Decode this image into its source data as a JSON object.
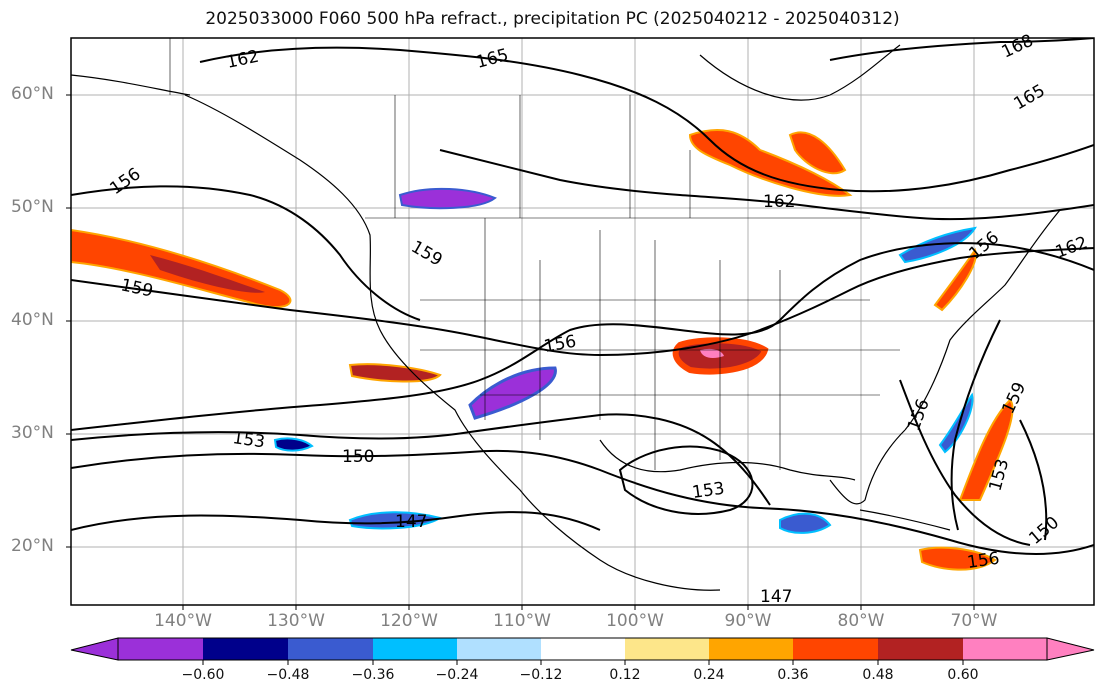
{
  "title": "2025033000 F060 500 hPa refract., precipitation PC (2025040212 - 2025040312)",
  "map": {
    "lat_labels": [
      "60°N",
      "50°N",
      "40°N",
      "30°N",
      "20°N"
    ],
    "lon_labels": [
      "140°W",
      "130°W",
      "120°W",
      "110°W",
      "100°W",
      "90°W",
      "80°W",
      "70°W"
    ],
    "contour_labels": [
      "162",
      "165",
      "168",
      "165",
      "156",
      "162",
      "159",
      "156",
      "159",
      "156",
      "153",
      "150",
      "147",
      "153",
      "153",
      "150",
      "156",
      "159",
      "162",
      "156",
      "147"
    ]
  },
  "colorbar": {
    "colors": [
      "#9b30d9",
      "#00008b",
      "#3a5bd0",
      "#00bfff",
      "#b0e0ff",
      "#ffffff",
      "#fde68a",
      "#ffa500",
      "#ff4500",
      "#b22222",
      "#ff80c0"
    ],
    "tick_labels": [
      "−0.60",
      "−0.48",
      "−0.36",
      "−0.24",
      "−0.12",
      "0.12",
      "0.24",
      "0.36",
      "0.48",
      "0.60"
    ]
  }
}
